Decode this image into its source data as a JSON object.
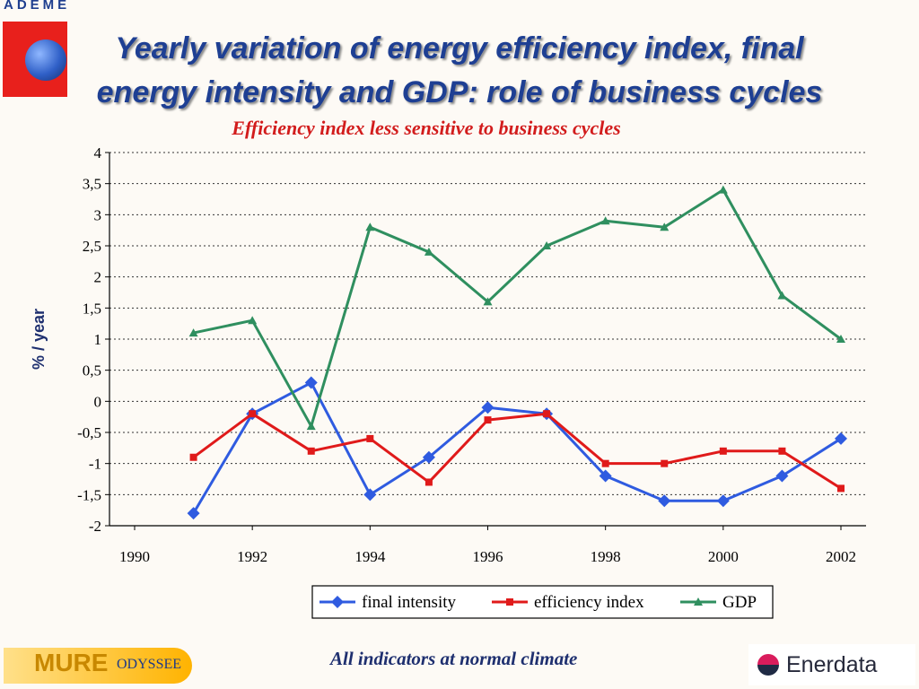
{
  "header": {
    "logo_text": "ADEME",
    "title_line1": "Yearly variation of energy efficiency index,  final",
    "title_line2": "energy intensity and  GDP: role of business cycles",
    "subtitle": "Efficiency index less sensitive to business cycles"
  },
  "chart_data": {
    "type": "line",
    "ylabel": "% / year",
    "xlabel": "",
    "x": [
      1991,
      1992,
      1993,
      1994,
      1995,
      1996,
      1997,
      1998,
      1999,
      2000,
      2001,
      2002
    ],
    "xlim": [
      1990,
      2002
    ],
    "x_ticks": [
      "1990",
      "1992",
      "1994",
      "1996",
      "1998",
      "2000",
      "2002"
    ],
    "ylim": [
      -2,
      4
    ],
    "y_ticks": [
      "4",
      "3,5",
      "3",
      "2,5",
      "2",
      "1,5",
      "1",
      "0,5",
      "0",
      "-0,5",
      "-1",
      "-1,5",
      "-2"
    ],
    "grid": true,
    "legend_position": "bottom",
    "series": [
      {
        "name": "final intensity",
        "color": "#2f5be0",
        "marker": "diamond",
        "values": [
          -1.8,
          -0.2,
          0.3,
          -1.5,
          -0.9,
          -0.1,
          -0.2,
          -1.2,
          -1.6,
          -1.6,
          -1.2,
          -0.6
        ]
      },
      {
        "name": "efficiency index",
        "color": "#e01a1a",
        "marker": "square",
        "values": [
          -0.9,
          -0.2,
          -0.8,
          -0.6,
          -1.3,
          -0.3,
          -0.2,
          -1.0,
          -1.0,
          -0.8,
          -0.8,
          -1.4
        ]
      },
      {
        "name": "GDP",
        "color": "#2f8f5f",
        "marker": "triangle",
        "values": [
          1.1,
          1.3,
          -0.4,
          2.8,
          2.4,
          1.6,
          2.5,
          2.9,
          2.8,
          3.4,
          1.7,
          1.0
        ]
      }
    ]
  },
  "footer": {
    "note": "All indicators at normal climate",
    "left_logo_text": "MURE",
    "left_logo_text2": "ODYSSEE",
    "right_logo_text": "Enerdata"
  }
}
